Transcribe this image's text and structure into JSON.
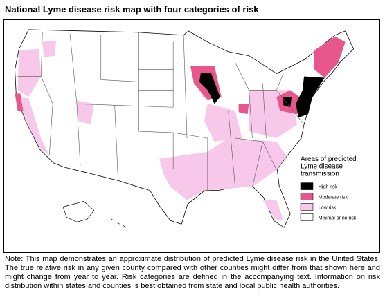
{
  "title": "National Lyme disease risk map with four categories of risk",
  "legend": {
    "title_lines": [
      "Areas of predicted",
      "Lyme disease",
      "transmission"
    ],
    "items": [
      {
        "label": "High risk",
        "color": "#000000"
      },
      {
        "label": "Moderate risk",
        "color": "#e8578c"
      },
      {
        "label": "Low risk",
        "color": "#f8c8ea"
      },
      {
        "label": "Minimal or no risk",
        "color": "#ffffff"
      }
    ]
  },
  "note": "Note: This map demonstrates an approximate distribution of predicted Lyme disease risk in the United States. The true relative risk in any given county compared with other counties might differ from that shown here and might change from year to year. Risk categories are defined in the accompanying text. Information on risk distribution within states and counties is best obtained from state and local public health authorities."
}
